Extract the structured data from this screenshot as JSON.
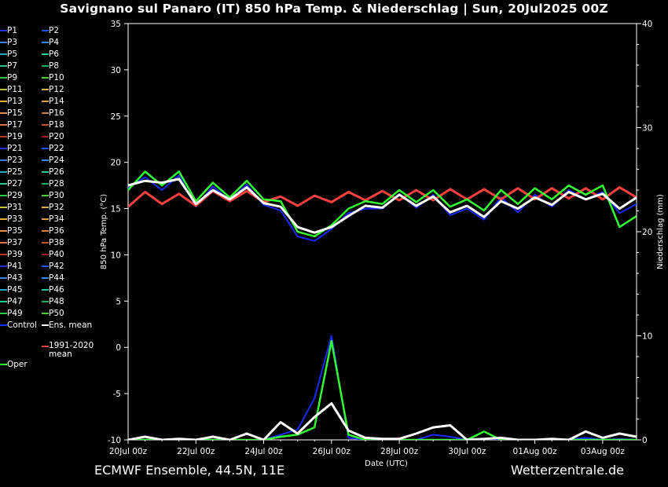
{
  "title": "Savignano sul Panaro  (IT)  850 hPa Temp. & Niederschlag | Sun, 20Jul2025 00Z",
  "footer": {
    "left": "ECMWF Ensemble, 44.5N, 11E",
    "right": "Wetterzentrale.de"
  },
  "legend": [
    {
      "label": "P1",
      "color": "#2233dd"
    },
    {
      "label": "P2",
      "color": "#2255ee"
    },
    {
      "label": "P3",
      "color": "#3a7ad8"
    },
    {
      "label": "P4",
      "color": "#3a8ae8"
    },
    {
      "label": "P5",
      "color": "#20a8c8"
    },
    {
      "label": "P6",
      "color": "#20c8a0"
    },
    {
      "label": "P7",
      "color": "#25c890"
    },
    {
      "label": "P8",
      "color": "#25a860"
    },
    {
      "label": "P9",
      "color": "#30c840"
    },
    {
      "label": "P10",
      "color": "#50d030"
    },
    {
      "label": "P11",
      "color": "#c0c040"
    },
    {
      "label": "P12",
      "color": "#d8b040"
    },
    {
      "label": "P13",
      "color": "#e0b030"
    },
    {
      "label": "P14",
      "color": "#e0a040"
    },
    {
      "label": "P15",
      "color": "#e09050"
    },
    {
      "label": "P16",
      "color": "#d08040"
    },
    {
      "label": "P17",
      "color": "#d87040"
    },
    {
      "label": "P18",
      "color": "#c85030"
    },
    {
      "label": "P19",
      "color": "#c03020"
    },
    {
      "label": "P20",
      "color": "#a02020"
    },
    {
      "label": "P21",
      "color": "#2233dd"
    },
    {
      "label": "P22",
      "color": "#2255ee"
    },
    {
      "label": "P23",
      "color": "#3a7ad8"
    },
    {
      "label": "P24",
      "color": "#3a8ae8"
    },
    {
      "label": "P25",
      "color": "#20a8c8"
    },
    {
      "label": "P26",
      "color": "#20c8a0"
    },
    {
      "label": "P27",
      "color": "#25c890"
    },
    {
      "label": "P28",
      "color": "#25a860"
    },
    {
      "label": "P29",
      "color": "#30c840"
    },
    {
      "label": "P30",
      "color": "#50d030"
    },
    {
      "label": "P31",
      "color": "#c0c040"
    },
    {
      "label": "P32",
      "color": "#d8b040"
    },
    {
      "label": "P33",
      "color": "#e0b030"
    },
    {
      "label": "P34",
      "color": "#e0a040"
    },
    {
      "label": "P35",
      "color": "#e09050"
    },
    {
      "label": "P36",
      "color": "#d08040"
    },
    {
      "label": "P37",
      "color": "#d87040"
    },
    {
      "label": "P38",
      "color": "#c85030"
    },
    {
      "label": "P39",
      "color": "#c03020"
    },
    {
      "label": "P40",
      "color": "#a02020"
    },
    {
      "label": "P41",
      "color": "#2233dd"
    },
    {
      "label": "P42",
      "color": "#2255ee"
    },
    {
      "label": "P43",
      "color": "#3a7ad8"
    },
    {
      "label": "P44",
      "color": "#3a8ae8"
    },
    {
      "label": "P45",
      "color": "#20a8c8"
    },
    {
      "label": "P46",
      "color": "#20c8a0"
    },
    {
      "label": "P47",
      "color": "#25c890"
    },
    {
      "label": "P48",
      "color": "#25a860"
    },
    {
      "label": "P49",
      "color": "#30c840"
    },
    {
      "label": "P50",
      "color": "#50d030"
    },
    {
      "label": "Control",
      "color": "#1a2aff"
    },
    {
      "label": "Ens. mean",
      "color": "#ffffff"
    },
    {
      "label": "1991-2020 mean",
      "color": "#ff4040"
    },
    {
      "label": "Oper",
      "color": "#33ff33"
    }
  ],
  "chart_data": {
    "type": "line",
    "xlabel": "Date (UTC)",
    "ylabel": "850 hPa Temp. (°C)",
    "y2label": "Niederschlag (mm)",
    "ylim": [
      -10,
      35
    ],
    "y2lim": [
      0,
      40
    ],
    "yticks": [
      35,
      30,
      25,
      20,
      15,
      10,
      5,
      0,
      -5,
      -10
    ],
    "y2ticks": [
      40,
      30,
      20,
      10,
      0
    ],
    "xlim": [
      0,
      15
    ],
    "xticks": [
      "20Jul 00z",
      "22Jul 00z",
      "24Jul 00z",
      "26Jul 00z",
      "28Jul 00z",
      "30Jul 00z",
      "01Aug 00z",
      "03Aug 00z"
    ],
    "xtick_positions": [
      0,
      2,
      4,
      6,
      8,
      10,
      12,
      14
    ],
    "series": [
      {
        "name": "Ens. mean",
        "color": "#ffffff",
        "kind": "temp",
        "x": [
          0,
          0.5,
          1,
          1.5,
          2,
          2.5,
          3,
          3.5,
          4,
          4.5,
          5,
          5.5,
          6,
          6.5,
          7,
          7.5,
          8,
          8.5,
          9,
          9.5,
          10,
          10.5,
          11,
          11.5,
          12,
          12.5,
          13,
          13.5,
          14,
          14.5,
          15
        ],
        "y": [
          17.5,
          18.0,
          17.8,
          18.2,
          15.5,
          17.0,
          16.0,
          17.3,
          15.6,
          15.2,
          13.0,
          12.4,
          13.0,
          14.2,
          15.3,
          15.1,
          16.5,
          15.3,
          16.3,
          14.6,
          15.3,
          14.1,
          15.8,
          15.0,
          16.2,
          15.4,
          16.8,
          16.0,
          16.6,
          15.0,
          16.2
        ]
      },
      {
        "name": "1991-2020 mean",
        "color": "#ff4040",
        "kind": "temp",
        "x": [
          0,
          0.5,
          1,
          1.5,
          2,
          2.5,
          3,
          3.5,
          4,
          4.5,
          5,
          5.5,
          6,
          6.5,
          7,
          7.5,
          8,
          8.5,
          9,
          9.5,
          10,
          10.5,
          11,
          11.5,
          12,
          12.5,
          13,
          13.5,
          14,
          14.5,
          15
        ],
        "y": [
          15.2,
          16.8,
          15.5,
          16.6,
          15.3,
          16.9,
          15.8,
          16.9,
          15.7,
          16.3,
          15.3,
          16.4,
          15.7,
          16.8,
          15.9,
          16.9,
          15.9,
          17.0,
          15.9,
          17.1,
          16.0,
          17.1,
          16.0,
          17.2,
          16.0,
          17.2,
          16.1,
          17.2,
          16.0,
          17.3,
          16.2
        ]
      },
      {
        "name": "Oper",
        "color": "#33ff33",
        "kind": "temp",
        "x": [
          0,
          0.5,
          1,
          1.5,
          2,
          2.5,
          3,
          3.5,
          4,
          4.5,
          5,
          5.5,
          6,
          6.5,
          7,
          7.5,
          8,
          8.5,
          9,
          9.5,
          10,
          10.5,
          11,
          11.5,
          12,
          12.5,
          13,
          13.5,
          14,
          14.5,
          15
        ],
        "y": [
          17.0,
          19.0,
          17.5,
          19.0,
          15.8,
          17.8,
          16.2,
          18.0,
          16.0,
          15.8,
          12.5,
          12.0,
          13.2,
          15.0,
          15.8,
          15.5,
          17.0,
          15.7,
          17.0,
          15.2,
          16.0,
          14.8,
          17.0,
          15.5,
          17.2,
          16.0,
          17.5,
          16.5,
          17.5,
          13.0,
          14.2
        ]
      },
      {
        "name": "Control",
        "color": "#1a2aff",
        "kind": "temp",
        "x": [
          0,
          0.5,
          1,
          1.5,
          2,
          2.5,
          3,
          3.5,
          4,
          4.5,
          5,
          5.5,
          6,
          6.5,
          7,
          7.5,
          8,
          8.5,
          9,
          9.5,
          10,
          10.5,
          11,
          11.5,
          12,
          12.5,
          13,
          13.5,
          14,
          14.5,
          15
        ],
        "y": [
          17.2,
          18.4,
          17.0,
          18.6,
          15.2,
          17.4,
          15.9,
          17.6,
          15.4,
          14.8,
          12.0,
          11.5,
          12.8,
          14.5,
          15.0,
          15.0,
          16.6,
          15.1,
          16.5,
          14.3,
          15.0,
          13.8,
          16.2,
          14.6,
          16.5,
          15.2,
          17.0,
          16.0,
          16.8,
          14.5,
          15.5
        ]
      },
      {
        "name": "Ens. mean",
        "color": "#ffffff",
        "kind": "precip",
        "x": [
          0,
          0.5,
          1,
          1.5,
          2,
          2.5,
          3,
          3.5,
          4,
          4.5,
          5,
          5.5,
          6,
          6.5,
          7,
          7.5,
          8,
          8.5,
          9,
          9.5,
          10,
          10.5,
          11,
          11.5,
          12,
          12.5,
          13,
          13.5,
          14,
          14.5,
          15
        ],
        "y": [
          0,
          0.3,
          0,
          0.1,
          0,
          0.3,
          0,
          0.6,
          0,
          1.7,
          0.6,
          2.2,
          3.5,
          0.9,
          0.2,
          0.1,
          0.1,
          0.6,
          1.2,
          1.4,
          0,
          0.1,
          0.2,
          0,
          0,
          0.1,
          0,
          0.8,
          0.2,
          0.6,
          0.3
        ]
      },
      {
        "name": "Control",
        "color": "#1a2aff",
        "kind": "precip",
        "x": [
          0,
          0.5,
          1,
          1.5,
          2,
          2.5,
          3,
          3.5,
          4,
          4.5,
          5,
          5.5,
          6,
          6.5,
          7,
          7.5,
          8,
          8.5,
          9,
          9.5,
          10,
          10.5,
          11,
          11.5,
          12,
          12.5,
          13,
          13.5,
          14,
          14.5,
          15
        ],
        "y": [
          0,
          0,
          0,
          0,
          0,
          0,
          0,
          0,
          0,
          0.5,
          1.0,
          4.0,
          10.0,
          0.2,
          0,
          0,
          0,
          0,
          0.5,
          0.3,
          0,
          0,
          0.1,
          0,
          0,
          0,
          0,
          0.2,
          0,
          0.1,
          0
        ]
      },
      {
        "name": "Oper",
        "color": "#33ff33",
        "kind": "precip",
        "x": [
          0,
          0.5,
          1,
          1.5,
          2,
          2.5,
          3,
          3.5,
          4,
          4.5,
          5,
          5.5,
          6,
          6.5,
          7,
          7.5,
          8,
          8.5,
          9,
          9.5,
          10,
          10.5,
          11,
          11.5,
          12,
          12.5,
          13,
          13.5,
          14,
          14.5,
          15
        ],
        "y": [
          0,
          0,
          0,
          0,
          0,
          0,
          0,
          0,
          0,
          0.3,
          0.5,
          1.2,
          9.5,
          0.5,
          0,
          0,
          0,
          0,
          0,
          0,
          0,
          0.8,
          0,
          0,
          0,
          0,
          0,
          0,
          0,
          0,
          0
        ]
      }
    ]
  }
}
